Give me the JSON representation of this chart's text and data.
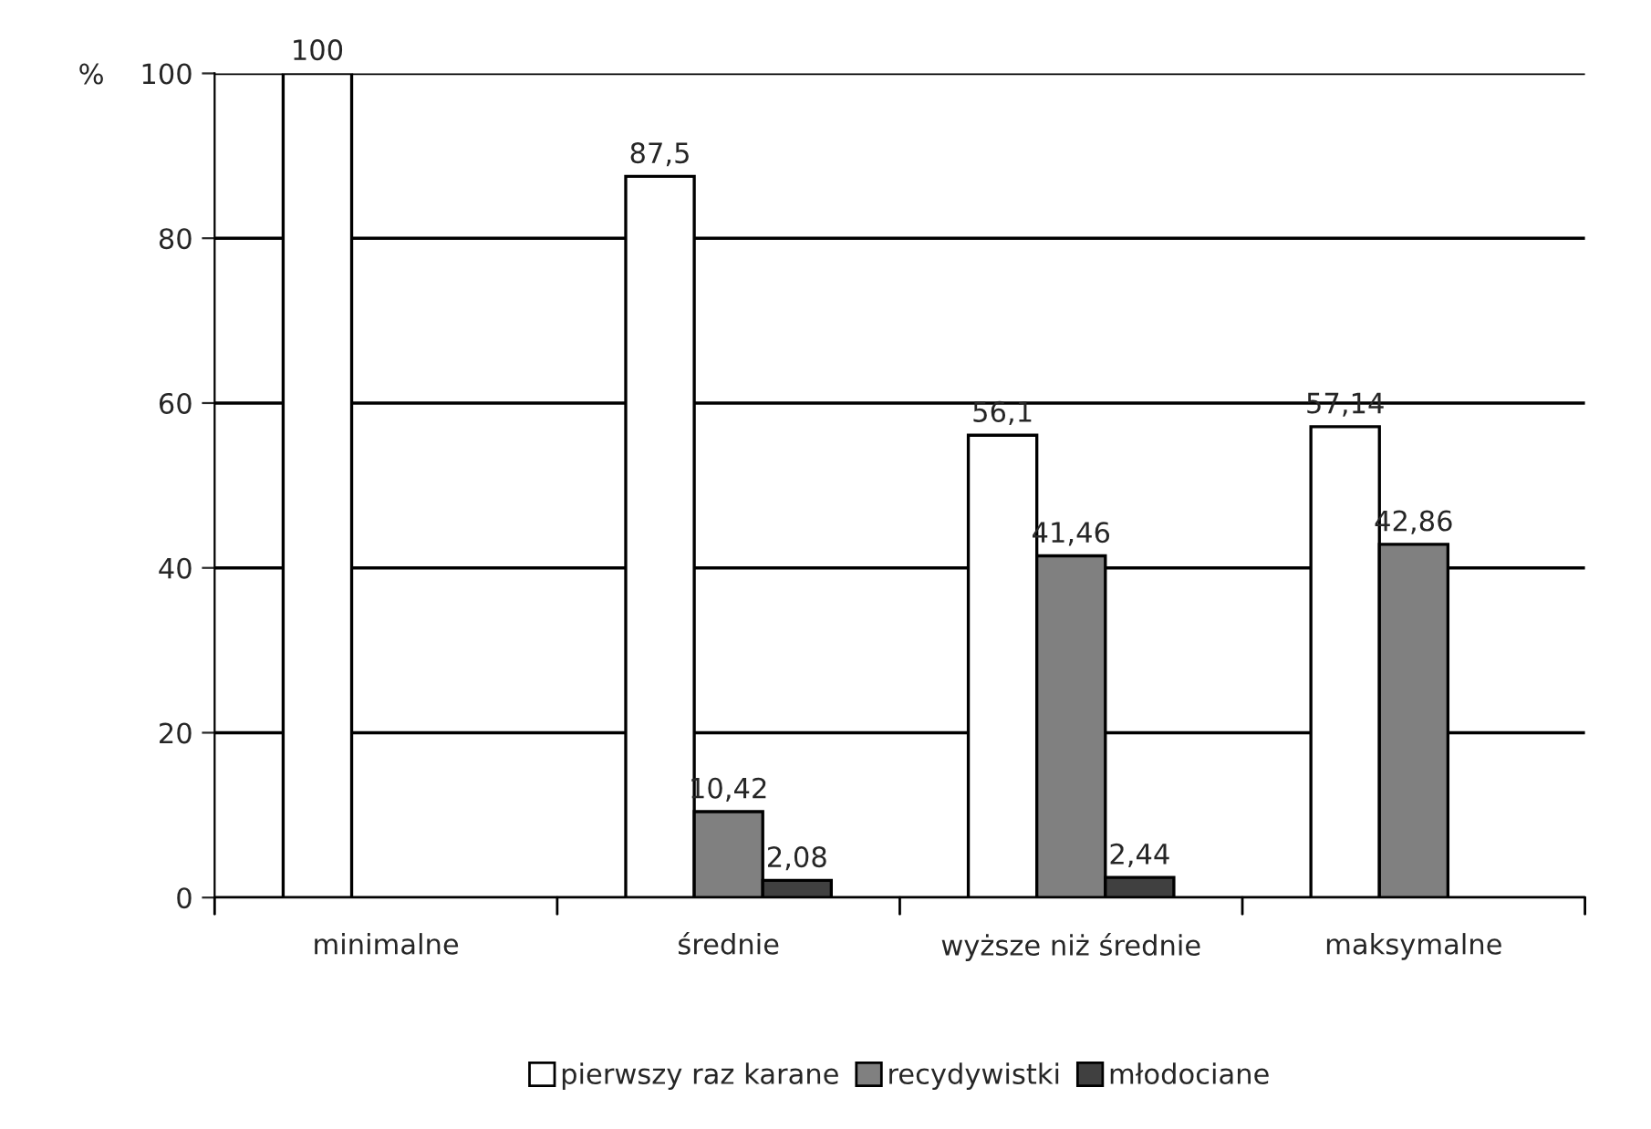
{
  "chart_data": {
    "type": "bar",
    "ylabel": "%",
    "categories": [
      "minimalne",
      "średnie",
      "wyższe niż średnie",
      "maksymalne"
    ],
    "series": [
      {
        "name": "pierwszy raz karane",
        "color": "#ffffff",
        "values": [
          100,
          87.5,
          56.1,
          57.14
        ],
        "value_labels": [
          "100",
          "87,5",
          "56,1",
          "57,14"
        ]
      },
      {
        "name": "recydywistki",
        "color": "#808080",
        "values": [
          null,
          10.42,
          41.46,
          42.86
        ],
        "value_labels": [
          null,
          "10,42",
          "41,46",
          "42,86"
        ]
      },
      {
        "name": "młodociane",
        "color": "#404040",
        "values": [
          null,
          2.08,
          2.44,
          null
        ],
        "value_labels": [
          null,
          "2,08",
          "2,44",
          null
        ]
      }
    ],
    "ylim": [
      0,
      100
    ],
    "yticks": [
      0,
      20,
      40,
      60,
      80,
      100
    ],
    "grid": "y",
    "legend": "bottom"
  }
}
